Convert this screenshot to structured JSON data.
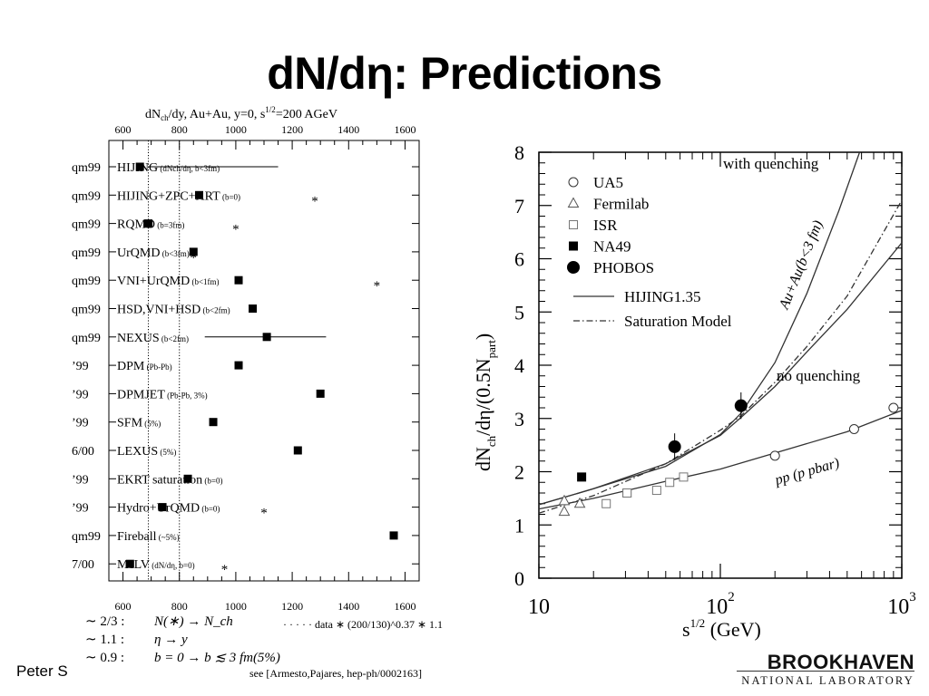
{
  "slide": {
    "title": "dN/dη: Predictions",
    "author": "Peter S"
  },
  "logo": {
    "top": "BROOKHAVEN",
    "bottom": "NATIONAL LABORATORY"
  },
  "chart_data": [
    {
      "type": "scatter",
      "title": "dN_ch/dy, Au+Au, y=0, s^1/2=200 AGeV",
      "title_parts": {
        "main": "dN",
        "sub": "ch",
        "mid": "/dy, Au+Au, y=0, s",
        "sup": "1/2",
        "end": "=200 AGeV"
      },
      "xlim": [
        550,
        1650
      ],
      "tick_labels": [
        "600",
        "800",
        "1000",
        "1200",
        "1400",
        "1600"
      ],
      "tick_values": [
        600,
        800,
        1000,
        1200,
        1400,
        1600
      ],
      "reference_lines": [
        690,
        800
      ],
      "rows": [
        {
          "tag": "qm99",
          "model": "HIJING",
          "note": "(dNch/dη, b<3fm)",
          "value": 660,
          "err": [
            690,
            1150
          ],
          "star": null
        },
        {
          "tag": "qm99",
          "model": "HIJING+ZPC+ART",
          "note": "(b=0)",
          "value": 870,
          "err": null,
          "star": 1280
        },
        {
          "tag": "qm99",
          "model": "RQMD",
          "note": "(b=3fm)",
          "value": 690,
          "err": null,
          "star": 1000
        },
        {
          "tag": "qm99",
          "model": "UrQMD",
          "note": "(b<3fm)",
          "value": 850,
          "err": null,
          "star": 850
        },
        {
          "tag": "qm99",
          "model": "VNI+UrQMD",
          "note": "(b<1fm)",
          "value": 1010,
          "err": null,
          "star": 1500
        },
        {
          "tag": "qm99",
          "model": "HSD,VNI+HSD",
          "note": "(b<2fm)",
          "value": 1060,
          "err": null,
          "star": null
        },
        {
          "tag": "qm99",
          "model": "NEXUS",
          "note": "(b<2fm)",
          "value": 1110,
          "err": [
            890,
            1320
          ],
          "star": null
        },
        {
          "tag": "’99",
          "model": "DPM",
          "note": "(Pb-Pb)",
          "value": 1010,
          "err": null,
          "star": null
        },
        {
          "tag": "’99",
          "model": "DPMJET",
          "note": "(Pb-Pb, 3%)",
          "value": 1300,
          "err": null,
          "star": null
        },
        {
          "tag": "’99",
          "model": "SFM",
          "note": "(5%)",
          "value": 920,
          "err": null,
          "star": null
        },
        {
          "tag": "6/00",
          "model": "LEXUS",
          "note": "(5%)",
          "value": 1220,
          "err": null,
          "star": null
        },
        {
          "tag": "’99",
          "model": "EKRT saturation",
          "note": "(b=0)",
          "value": 830,
          "err": null,
          "star": null
        },
        {
          "tag": "’99",
          "model": "Hydro+UrQMD",
          "note": "(b=0)",
          "value": 740,
          "err": null,
          "star": 1100
        },
        {
          "tag": "qm99",
          "model": "Fireball",
          "note": "(~5%)",
          "value": 1560,
          "err": null,
          "star": null
        },
        {
          "tag": "7/00",
          "model": "McLV",
          "note": "(dN/dη, b=0)",
          "value": 625,
          "err": null,
          "star": 960
        }
      ],
      "footnotes": [
        {
          "left": "∼ 2/3 :",
          "right": "N(∗) → N_ch"
        },
        {
          "left": "∼ 1.1 :",
          "right": "η → y"
        },
        {
          "left": "∼ 0.9 :",
          "right": "b = 0 → b ≲ 3 fm(5%)"
        }
      ],
      "dotted_legend": "· · · · · data ∗ (200/130)^0.37 ∗ 1.1",
      "reference": "see [Armesto,Pajares, hep-ph/0002163]"
    },
    {
      "type": "line",
      "xlabel": "s^1/2 (GeV)",
      "ylabel": "dN_ch/dη/(0.5N_part)",
      "xscale": "log",
      "xlim": [
        10,
        1000
      ],
      "ylim": [
        0,
        8
      ],
      "y_ticks": [
        "0",
        "1",
        "2",
        "3",
        "4",
        "5",
        "6",
        "7",
        "8"
      ],
      "x_ticks": [
        {
          "base": "10",
          "exp": ""
        },
        {
          "base": "10",
          "exp": "2"
        },
        {
          "base": "10",
          "exp": "3"
        }
      ],
      "legend": [
        {
          "symbol": "open-circle",
          "label": "UA5"
        },
        {
          "symbol": "open-triangle",
          "label": "Fermilab"
        },
        {
          "symbol": "open-square",
          "label": "ISR"
        },
        {
          "symbol": "filled-square",
          "label": "NA49"
        },
        {
          "symbol": "filled-circle",
          "label": "PHOBOS"
        },
        {
          "symbol": "solid-line",
          "label": "HIJING1.35"
        },
        {
          "symbol": "dashdot-line",
          "label": "Saturation Model"
        }
      ],
      "annotations": [
        "with quenching",
        "no quenching",
        "Au+Au(b<3 fm)",
        "pp (p pbar)"
      ],
      "series": [
        {
          "name": "UA5",
          "x": [
            200,
            546,
            900
          ],
          "y": [
            2.3,
            2.8,
            3.2
          ]
        },
        {
          "name": "Fermilab",
          "x": [
            13.8,
            13.8,
            16.8
          ],
          "y": [
            1.25,
            1.45,
            1.4
          ]
        },
        {
          "name": "ISR",
          "x": [
            23.5,
            30.6,
            44.6,
            52.6,
            62.7,
            30.6
          ],
          "y": [
            1.4,
            1.6,
            1.65,
            1.8,
            1.9,
            1.6
          ]
        },
        {
          "name": "NA49",
          "x": [
            17.2
          ],
          "y": [
            1.9
          ]
        },
        {
          "name": "PHOBOS",
          "x": [
            56,
            130
          ],
          "y": [
            2.47,
            3.24
          ],
          "yerr": [
            0.25,
            0.25
          ]
        }
      ],
      "curves": [
        {
          "name": "pp (p pbar)",
          "style": "solid",
          "x": [
            10,
            20,
            50,
            100,
            200,
            500,
            1000
          ],
          "y": [
            1.3,
            1.5,
            1.82,
            2.05,
            2.35,
            2.75,
            3.15
          ]
        },
        {
          "name": "HIJING no quenching",
          "style": "solid",
          "x": [
            10,
            20,
            50,
            100,
            130,
            200,
            300,
            500,
            1000
          ],
          "y": [
            1.38,
            1.68,
            2.15,
            2.68,
            3.02,
            3.6,
            4.25,
            5.05,
            6.3
          ]
        },
        {
          "name": "HIJING with quenching",
          "style": "solid",
          "x": [
            10,
            20,
            50,
            100,
            130,
            200,
            300,
            450,
            600
          ],
          "y": [
            1.38,
            1.68,
            2.1,
            2.7,
            3.1,
            4.05,
            5.35,
            6.9,
            8.1
          ]
        },
        {
          "name": "Saturation Model",
          "style": "dashdot",
          "x": [
            10,
            20,
            50,
            100,
            130,
            200,
            300,
            500,
            1000
          ],
          "y": [
            1.22,
            1.55,
            2.15,
            2.78,
            3.05,
            3.68,
            4.35,
            5.3,
            7.1
          ]
        }
      ]
    }
  ]
}
